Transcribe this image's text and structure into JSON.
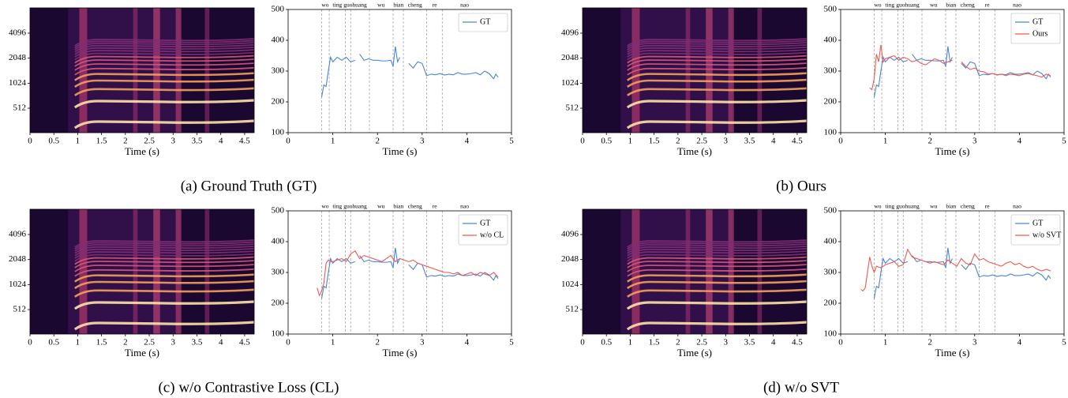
{
  "captions": [
    "(a) Ground Truth (GT)",
    "(b) Ours",
    "(c) w/o Contrastive Loss (CL)",
    "(d) w/o SVT"
  ],
  "chart_data": [
    {
      "type": "spectrogram",
      "xlabel": "Time (s)",
      "xlim": [
        0,
        4.7
      ],
      "xticks": [
        0,
        0.5,
        1,
        1.5,
        2,
        2.5,
        3,
        3.5,
        4,
        4.5
      ],
      "ylim": [
        260,
        8250
      ],
      "yticks": [
        512,
        1024,
        2048,
        4096
      ],
      "log_y": true
    },
    {
      "type": "line",
      "xlabel": "Time (s)",
      "xlim": [
        0,
        5
      ],
      "ylim": [
        100,
        500
      ],
      "xticks": [
        0,
        1,
        2,
        3,
        4,
        5
      ],
      "yticks": [
        100,
        200,
        300,
        400,
        500
      ],
      "legend": "upper right",
      "boundaries": [
        0.75,
        0.92,
        1.28,
        1.4,
        1.82,
        2.35,
        2.58,
        3.1,
        3.45
      ],
      "top_ticks": [
        {
          "value": 0.83,
          "label": "wo"
        },
        {
          "value": 1.1,
          "label": "ting"
        },
        {
          "value": 1.34,
          "label": "guo"
        },
        {
          "value": 1.6,
          "label": "huang"
        },
        {
          "value": 2.08,
          "label": "wu"
        },
        {
          "value": 2.47,
          "label": "bian"
        },
        {
          "value": 2.84,
          "label": "cheng"
        },
        {
          "value": 3.28,
          "label": "re"
        },
        {
          "value": 3.95,
          "label": "nao"
        }
      ],
      "series": [
        {
          "name": "GT",
          "color": "#4a86d4",
          "x": [
            0.75,
            0.8,
            0.85,
            0.9,
            0.95,
            1.0,
            1.1,
            1.2,
            1.3,
            1.4,
            1.5,
            1.55,
            1.6,
            1.7,
            1.8,
            1.9,
            2.0,
            2.1,
            2.2,
            2.3,
            2.35,
            2.4,
            2.45,
            2.5,
            2.6,
            2.7,
            2.8,
            2.9,
            3.0,
            3.1,
            3.2,
            3.3,
            3.4,
            3.5,
            3.6,
            3.7,
            3.8,
            3.9,
            4.0,
            4.1,
            4.2,
            4.3,
            4.4,
            4.5,
            4.6,
            4.65,
            4.7
          ],
          "values": [
            215,
            255,
            250,
            300,
            345,
            330,
            345,
            335,
            345,
            330,
            335,
            null,
            355,
            335,
            340,
            335,
            335,
            333,
            333,
            335,
            315,
            380,
            330,
            345,
            null,
            325,
            310,
            330,
            325,
            285,
            290,
            288,
            292,
            287,
            290,
            288,
            295,
            290,
            290,
            292,
            295,
            288,
            300,
            292,
            275,
            290,
            280
          ]
        }
      ]
    },
    {
      "type": "spectrogram",
      "xlabel": "Time (s)",
      "xlim": [
        0,
        4.7
      ],
      "xticks": [
        0,
        0.5,
        1,
        1.5,
        2,
        2.5,
        3,
        3.5,
        4,
        4.5
      ],
      "ylim": [
        260,
        8250
      ],
      "yticks": [
        512,
        1024,
        2048,
        4096
      ],
      "log_y": true
    },
    {
      "type": "line",
      "xlabel": "Time (s)",
      "xlim": [
        0,
        5
      ],
      "ylim": [
        100,
        500
      ],
      "xticks": [
        0,
        1,
        2,
        3,
        4,
        5
      ],
      "yticks": [
        100,
        200,
        300,
        400,
        500
      ],
      "legend": "upper right",
      "boundaries": [
        0.75,
        0.92,
        1.28,
        1.4,
        1.82,
        2.35,
        2.58,
        3.1,
        3.45
      ],
      "top_ticks": [
        {
          "value": 0.83,
          "label": "wo"
        },
        {
          "value": 1.1,
          "label": "ting"
        },
        {
          "value": 1.34,
          "label": "guo"
        },
        {
          "value": 1.6,
          "label": "huang"
        },
        {
          "value": 2.08,
          "label": "wu"
        },
        {
          "value": 2.47,
          "label": "bian"
        },
        {
          "value": 2.84,
          "label": "cheng"
        },
        {
          "value": 3.28,
          "label": "re"
        },
        {
          "value": 3.95,
          "label": "nao"
        }
      ],
      "series": [
        {
          "name": "GT",
          "color": "#4a86d4",
          "x": [
            0.75,
            0.8,
            0.85,
            0.9,
            0.95,
            1.0,
            1.1,
            1.2,
            1.3,
            1.4,
            1.5,
            1.55,
            1.6,
            1.7,
            1.8,
            1.9,
            2.0,
            2.1,
            2.2,
            2.3,
            2.35,
            2.4,
            2.45,
            2.5,
            2.6,
            2.7,
            2.8,
            2.9,
            3.0,
            3.1,
            3.2,
            3.3,
            3.4,
            3.5,
            3.6,
            3.7,
            3.8,
            3.9,
            4.0,
            4.1,
            4.2,
            4.3,
            4.4,
            4.5,
            4.6,
            4.65,
            4.7
          ],
          "values": [
            215,
            255,
            250,
            300,
            345,
            330,
            345,
            335,
            345,
            330,
            335,
            null,
            355,
            335,
            340,
            335,
            335,
            333,
            333,
            335,
            315,
            380,
            330,
            345,
            null,
            325,
            310,
            330,
            325,
            285,
            290,
            288,
            292,
            287,
            290,
            288,
            295,
            290,
            290,
            292,
            295,
            288,
            300,
            292,
            275,
            290,
            280
          ]
        },
        {
          "name": "Ours",
          "color": "#f05a50",
          "x": [
            0.65,
            0.7,
            0.75,
            0.8,
            0.85,
            0.9,
            0.95,
            1.0,
            1.1,
            1.2,
            1.3,
            1.4,
            1.5,
            1.6,
            1.7,
            1.8,
            1.9,
            2.0,
            2.1,
            2.2,
            2.3,
            2.4,
            2.5,
            2.6,
            2.7,
            2.8,
            2.9,
            3.0,
            3.1,
            3.2,
            3.3,
            3.4,
            3.5,
            3.6,
            3.7,
            3.8,
            3.9,
            4.0,
            4.1,
            4.2,
            4.3,
            4.4,
            4.5,
            4.6,
            4.7
          ],
          "values": [
            245,
            240,
            275,
            355,
            330,
            385,
            330,
            340,
            345,
            350,
            335,
            345,
            340,
            330,
            335,
            325,
            320,
            330,
            340,
            335,
            325,
            330,
            335,
            null,
            330,
            315,
            305,
            310,
            300,
            298,
            290,
            292,
            288,
            290,
            285,
            290,
            288,
            285,
            290,
            292,
            288,
            285,
            280,
            290,
            285
          ]
        }
      ]
    },
    {
      "type": "spectrogram",
      "xlabel": "Time (s)",
      "xlim": [
        0,
        4.7
      ],
      "xticks": [
        0,
        0.5,
        1,
        1.5,
        2,
        2.5,
        3,
        3.5,
        4,
        4.5
      ],
      "ylim": [
        260,
        8250
      ],
      "yticks": [
        512,
        1024,
        2048,
        4096
      ],
      "log_y": true
    },
    {
      "type": "line",
      "xlabel": "Time (s)",
      "xlim": [
        0,
        5
      ],
      "ylim": [
        100,
        500
      ],
      "xticks": [
        0,
        1,
        2,
        3,
        4,
        5
      ],
      "yticks": [
        100,
        200,
        300,
        400,
        500
      ],
      "legend": "upper right",
      "boundaries": [
        0.75,
        0.92,
        1.28,
        1.4,
        1.82,
        2.35,
        2.58,
        3.1,
        3.45
      ],
      "top_ticks": [
        {
          "value": 0.83,
          "label": "wo"
        },
        {
          "value": 1.1,
          "label": "ting"
        },
        {
          "value": 1.34,
          "label": "guo"
        },
        {
          "value": 1.6,
          "label": "huang"
        },
        {
          "value": 2.08,
          "label": "wu"
        },
        {
          "value": 2.47,
          "label": "bian"
        },
        {
          "value": 2.84,
          "label": "cheng"
        },
        {
          "value": 3.28,
          "label": "re"
        },
        {
          "value": 3.95,
          "label": "nao"
        }
      ],
      "series": [
        {
          "name": "GT",
          "color": "#4a86d4",
          "x": [
            0.75,
            0.8,
            0.85,
            0.9,
            0.95,
            1.0,
            1.1,
            1.2,
            1.3,
            1.4,
            1.5,
            1.55,
            1.6,
            1.7,
            1.8,
            1.9,
            2.0,
            2.1,
            2.2,
            2.3,
            2.35,
            2.4,
            2.45,
            2.5,
            2.6,
            2.7,
            2.8,
            2.9,
            3.0,
            3.1,
            3.2,
            3.3,
            3.4,
            3.5,
            3.6,
            3.7,
            3.8,
            3.9,
            4.0,
            4.1,
            4.2,
            4.3,
            4.4,
            4.5,
            4.6,
            4.65,
            4.7
          ],
          "values": [
            215,
            255,
            250,
            300,
            345,
            330,
            345,
            335,
            345,
            330,
            335,
            null,
            355,
            335,
            340,
            335,
            335,
            333,
            333,
            335,
            315,
            380,
            330,
            345,
            null,
            325,
            310,
            330,
            325,
            285,
            290,
            288,
            292,
            287,
            290,
            288,
            295,
            290,
            290,
            292,
            295,
            288,
            300,
            292,
            275,
            290,
            280
          ]
        },
        {
          "name": "w/o CL",
          "color": "#f05a50",
          "x": [
            0.65,
            0.7,
            0.75,
            0.8,
            0.85,
            0.9,
            0.95,
            1.0,
            1.1,
            1.2,
            1.3,
            1.4,
            1.5,
            1.6,
            1.7,
            1.8,
            1.9,
            2.0,
            2.1,
            2.2,
            2.3,
            2.4,
            2.5,
            2.6,
            2.7,
            2.8,
            2.9,
            3.0,
            3.1,
            3.2,
            3.3,
            3.4,
            3.5,
            3.6,
            3.7,
            3.8,
            3.9,
            4.0,
            4.1,
            4.2,
            4.3,
            4.4,
            4.5,
            4.6,
            4.7
          ],
          "values": [
            250,
            225,
            240,
            265,
            330,
            340,
            335,
            335,
            340,
            345,
            335,
            360,
            370,
            345,
            355,
            350,
            345,
            340,
            335,
            345,
            355,
            335,
            345,
            340,
            335,
            340,
            330,
            325,
            320,
            315,
            310,
            305,
            300,
            300,
            295,
            300,
            290,
            295,
            300,
            290,
            300,
            295,
            290,
            300,
            285
          ]
        }
      ]
    },
    {
      "type": "spectrogram",
      "xlabel": "Time (s)",
      "xlim": [
        0,
        4.7
      ],
      "xticks": [
        0,
        0.5,
        1,
        1.5,
        2,
        2.5,
        3,
        3.5,
        4,
        4.5
      ],
      "ylim": [
        260,
        8250
      ],
      "yticks": [
        512,
        1024,
        2048,
        4096
      ],
      "log_y": true
    },
    {
      "type": "line",
      "xlabel": "Time (s)",
      "xlim": [
        0,
        5
      ],
      "ylim": [
        100,
        500
      ],
      "xticks": [
        0,
        1,
        2,
        3,
        4,
        5
      ],
      "yticks": [
        100,
        200,
        300,
        400,
        500
      ],
      "legend": "upper right",
      "boundaries": [
        0.75,
        0.92,
        1.28,
        1.4,
        1.82,
        2.35,
        2.58,
        3.1,
        3.45
      ],
      "top_ticks": [
        {
          "value": 0.83,
          "label": "wo"
        },
        {
          "value": 1.1,
          "label": "ting"
        },
        {
          "value": 1.34,
          "label": "guo"
        },
        {
          "value": 1.6,
          "label": "huang"
        },
        {
          "value": 2.08,
          "label": "wu"
        },
        {
          "value": 2.47,
          "label": "bian"
        },
        {
          "value": 2.84,
          "label": "cheng"
        },
        {
          "value": 3.28,
          "label": "re"
        },
        {
          "value": 3.95,
          "label": "nao"
        }
      ],
      "series": [
        {
          "name": "GT",
          "color": "#4a86d4",
          "x": [
            0.75,
            0.8,
            0.85,
            0.9,
            0.95,
            1.0,
            1.1,
            1.2,
            1.3,
            1.4,
            1.5,
            1.55,
            1.6,
            1.7,
            1.8,
            1.9,
            2.0,
            2.1,
            2.2,
            2.3,
            2.35,
            2.4,
            2.45,
            2.5,
            2.6,
            2.7,
            2.8,
            2.9,
            3.0,
            3.1,
            3.2,
            3.3,
            3.4,
            3.5,
            3.6,
            3.7,
            3.8,
            3.9,
            4.0,
            4.1,
            4.2,
            4.3,
            4.4,
            4.5,
            4.6,
            4.65,
            4.7
          ],
          "values": [
            215,
            255,
            250,
            300,
            345,
            330,
            345,
            335,
            345,
            330,
            335,
            null,
            355,
            335,
            340,
            335,
            335,
            333,
            333,
            335,
            315,
            380,
            330,
            345,
            null,
            325,
            310,
            330,
            325,
            285,
            290,
            288,
            292,
            287,
            290,
            288,
            295,
            290,
            290,
            292,
            295,
            288,
            300,
            292,
            275,
            290,
            280
          ]
        },
        {
          "name": "w/o SVT",
          "color": "#f05a50",
          "x": [
            0.45,
            0.5,
            0.55,
            0.6,
            0.65,
            0.7,
            0.75,
            0.8,
            0.9,
            1.0,
            1.1,
            1.2,
            1.3,
            1.4,
            1.5,
            1.6,
            1.7,
            1.8,
            1.9,
            2.0,
            2.1,
            2.2,
            2.3,
            2.4,
            2.5,
            2.6,
            2.7,
            2.8,
            2.9,
            3.0,
            3.1,
            3.2,
            3.3,
            3.4,
            3.5,
            3.6,
            3.7,
            3.8,
            3.9,
            4.0,
            4.1,
            4.2,
            4.3,
            4.4,
            4.5,
            4.6,
            4.7
          ],
          "values": [
            245,
            240,
            250,
            300,
            350,
            320,
            300,
            320,
            315,
            325,
            330,
            335,
            320,
            325,
            375,
            350,
            345,
            340,
            335,
            330,
            335,
            330,
            325,
            340,
            330,
            320,
            345,
            330,
            325,
            360,
            340,
            345,
            335,
            330,
            325,
            320,
            330,
            335,
            325,
            330,
            320,
            315,
            320,
            310,
            305,
            310,
            305
          ]
        }
      ]
    }
  ]
}
